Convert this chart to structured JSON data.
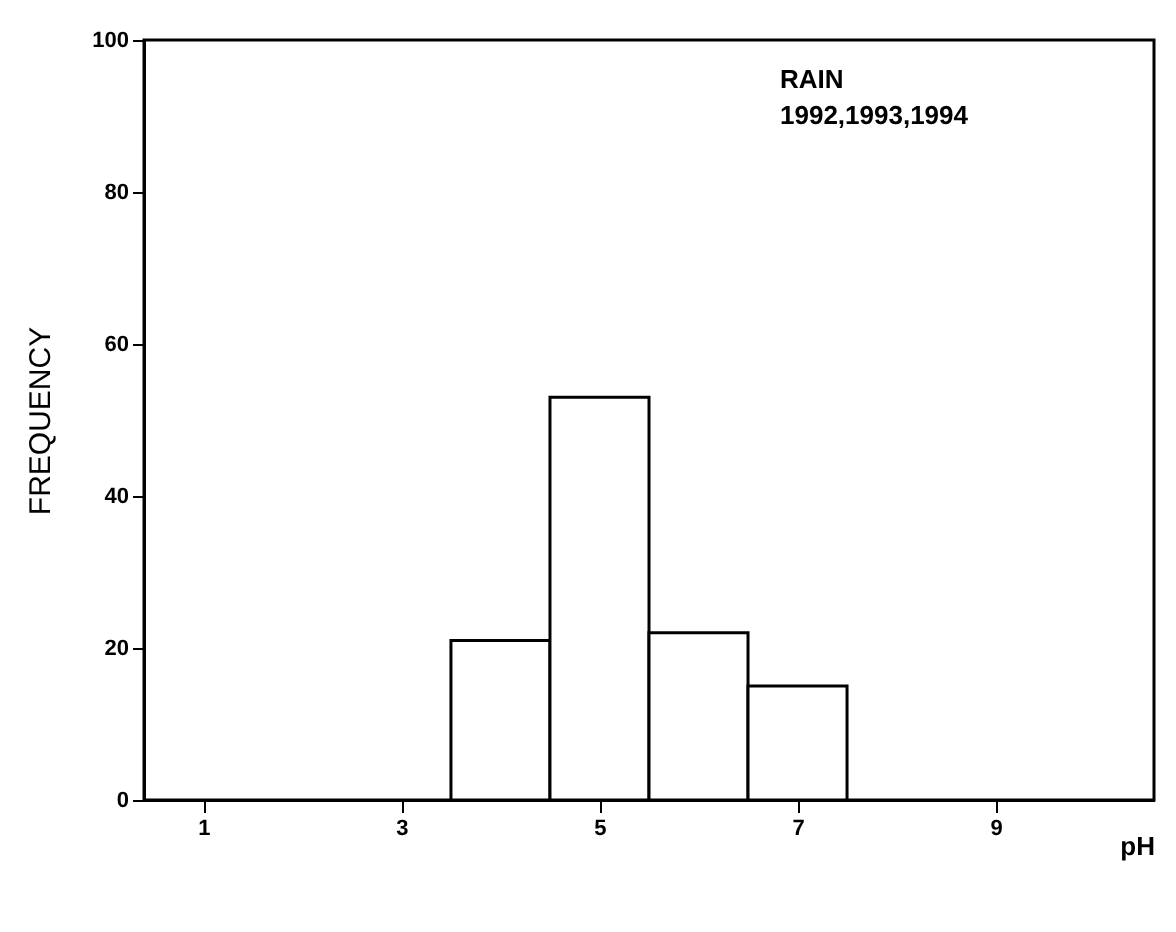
{
  "chart_data": {
    "type": "histogram",
    "xlabel": "pH",
    "ylabel": "FREQUENCY",
    "annotations": [
      "RAIN",
      "1992,1993,1994"
    ],
    "bins": [
      3.5,
      4.5,
      5.5,
      6.5,
      7.5
    ],
    "values": [
      21,
      53,
      22,
      15
    ],
    "color": "#ffffff",
    "xlim": [
      0.4,
      10.6
    ],
    "xticks": [
      1,
      3,
      5,
      7,
      9
    ],
    "ylim": [
      0,
      100
    ],
    "yticks": [
      0,
      20,
      40,
      60,
      80,
      100
    ],
    "grid": false
  }
}
